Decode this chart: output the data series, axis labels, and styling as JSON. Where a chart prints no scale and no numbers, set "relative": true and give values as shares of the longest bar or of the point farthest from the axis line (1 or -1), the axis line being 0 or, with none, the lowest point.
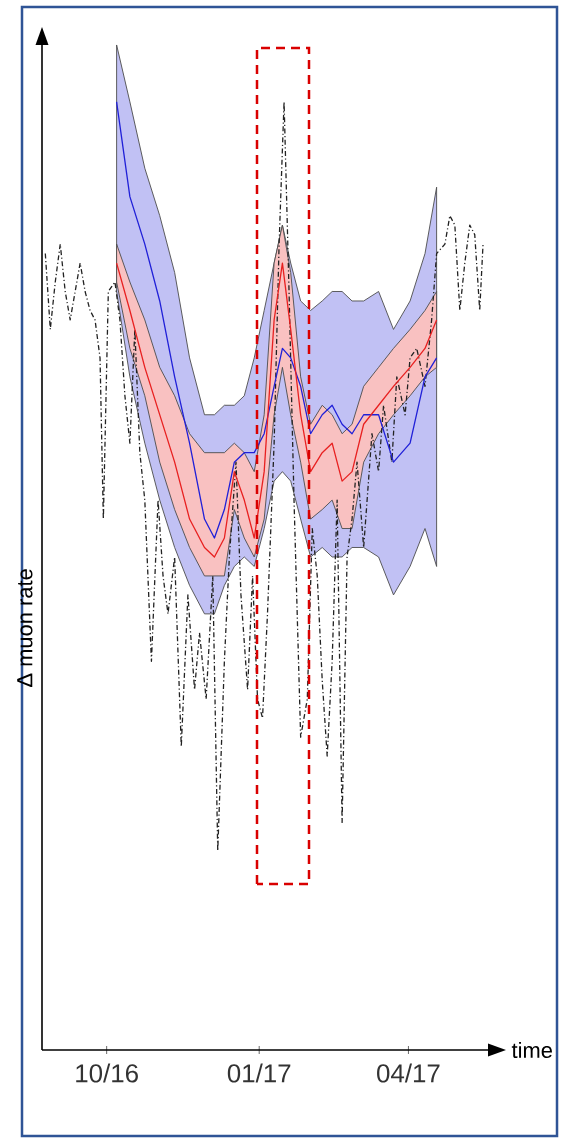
{
  "chart_data": {
    "type": "line",
    "relative": true,
    "tick_labels": "x",
    "xlabel": "time",
    "ylabel": "Δ muon rate",
    "xlim": [
      "2016-08-23",
      "2017-05-19"
    ],
    "xticks": [
      {
        "value": "2016-10-01",
        "label": "10/16"
      },
      {
        "value": "2017-01-01",
        "label": "01/17"
      },
      {
        "value": "2017-04-01",
        "label": "04/17"
      }
    ],
    "series": [
      {
        "color": "#222222",
        "line_style": "dashdot",
        "x": [
          "2016-08-25",
          "2016-08-28",
          "2016-08-31",
          "2016-09-03",
          "2016-09-06",
          "2016-09-09",
          "2016-09-12",
          "2016-09-15",
          "2016-09-18",
          "2016-09-21",
          "2016-09-24",
          "2016-09-27",
          "2016-09-29",
          "2016-10-02",
          "2016-10-06",
          "2016-10-09",
          "2016-10-12",
          "2016-10-15",
          "2016-10-18",
          "2016-10-21",
          "2016-10-24",
          "2016-10-28",
          "2016-11-01",
          "2016-11-04",
          "2016-11-07",
          "2016-11-11",
          "2016-11-15",
          "2016-11-19",
          "2016-11-23",
          "2016-11-26",
          "2016-11-30",
          "2016-12-04",
          "2016-12-07",
          "2016-12-11",
          "2016-12-14",
          "2016-12-18",
          "2016-12-21",
          "2016-12-25",
          "2016-12-28",
          "2016-12-31",
          "2017-01-03",
          "2017-01-06",
          "2017-01-10",
          "2017-01-13",
          "2017-01-16",
          "2017-01-19",
          "2017-01-22",
          "2017-01-26",
          "2017-01-30",
          "2017-02-02",
          "2017-02-05",
          "2017-02-08",
          "2017-02-11",
          "2017-02-14",
          "2017-02-17",
          "2017-02-20",
          "2017-02-23",
          "2017-02-26",
          "2017-03-01",
          "2017-03-05",
          "2017-03-10",
          "2017-03-14",
          "2017-03-17",
          "2017-03-22",
          "2017-03-25",
          "2017-03-30",
          "2017-04-02",
          "2017-04-06",
          "2017-04-11",
          "2017-04-15",
          "2017-04-18",
          "2017-04-23",
          "2017-04-26",
          "2017-04-29",
          "2017-05-02",
          "2017-05-05",
          "2017-05-08",
          "2017-05-11",
          "2017-05-14",
          "2017-05-16"
        ],
        "values": [
          0.84,
          0.76,
          0.81,
          0.85,
          0.8,
          0.77,
          0.8,
          0.83,
          0.8,
          0.78,
          0.77,
          0.73,
          0.56,
          0.8,
          0.81,
          0.77,
          0.69,
          0.64,
          0.76,
          0.63,
          0.58,
          0.41,
          0.58,
          0.5,
          0.46,
          0.52,
          0.32,
          0.48,
          0.38,
          0.44,
          0.37,
          0.5,
          0.21,
          0.41,
          0.52,
          0.62,
          0.48,
          0.38,
          0.5,
          0.37,
          0.35,
          0.46,
          0.64,
          0.85,
          1.0,
          0.8,
          0.58,
          0.33,
          0.37,
          0.55,
          0.5,
          0.39,
          0.31,
          0.41,
          0.58,
          0.24,
          0.52,
          0.56,
          0.62,
          0.53,
          0.65,
          0.61,
          0.68,
          0.62,
          0.71,
          0.67,
          0.73,
          0.74,
          0.7,
          0.77,
          0.84,
          0.85,
          0.88,
          0.87,
          0.78,
          0.83,
          0.87,
          0.86,
          0.78,
          0.85
        ]
      },
      {
        "color": "#2020d8",
        "x": [
          "2016-10-07",
          "2016-10-15",
          "2016-10-24",
          "2016-11-02",
          "2016-11-11",
          "2016-11-20",
          "2016-11-29",
          "2016-12-05",
          "2016-12-11",
          "2016-12-17",
          "2016-12-23",
          "2016-12-29",
          "2017-01-04",
          "2017-01-10",
          "2017-01-15",
          "2017-01-20",
          "2017-01-26",
          "2017-02-01",
          "2017-02-08",
          "2017-02-14",
          "2017-02-20",
          "2017-02-26",
          "2017-03-05",
          "2017-03-14",
          "2017-03-23",
          "2017-04-02",
          "2017-04-11",
          "2017-04-18"
        ],
        "values": [
          1.0,
          0.9,
          0.85,
          0.79,
          0.71,
          0.64,
          0.56,
          0.54,
          0.57,
          0.62,
          0.63,
          0.63,
          0.65,
          0.7,
          0.74,
          0.73,
          0.7,
          0.65,
          0.67,
          0.68,
          0.66,
          0.65,
          0.67,
          0.67,
          0.62,
          0.64,
          0.71,
          0.73
        ],
        "upper": [
          1.06,
          1.0,
          0.93,
          0.88,
          0.82,
          0.73,
          0.67,
          0.67,
          0.68,
          0.68,
          0.69,
          0.73,
          0.78,
          0.83,
          0.87,
          0.83,
          0.79,
          0.78,
          0.79,
          0.8,
          0.8,
          0.79,
          0.79,
          0.8,
          0.76,
          0.79,
          0.84,
          0.91
        ],
        "lower": [
          0.8,
          0.71,
          0.64,
          0.58,
          0.53,
          0.49,
          0.46,
          0.46,
          0.49,
          0.51,
          0.52,
          0.51,
          0.55,
          0.6,
          0.61,
          0.6,
          0.56,
          0.52,
          0.53,
          0.52,
          0.52,
          0.53,
          0.53,
          0.52,
          0.48,
          0.51,
          0.55,
          0.51
        ]
      },
      {
        "color": "#e82020",
        "x": [
          "2016-10-07",
          "2016-10-15",
          "2016-10-24",
          "2016-11-02",
          "2016-11-11",
          "2016-11-20",
          "2016-11-29",
          "2016-12-05",
          "2016-12-11",
          "2016-12-17",
          "2016-12-23",
          "2016-12-29",
          "2017-01-04",
          "2017-01-10",
          "2017-01-15",
          "2017-01-20",
          "2017-01-26",
          "2017-02-01",
          "2017-02-08",
          "2017-02-14",
          "2017-02-20",
          "2017-02-26",
          "2017-03-05",
          "2017-03-14",
          "2017-03-23",
          "2017-04-02",
          "2017-04-11",
          "2017-04-18"
        ],
        "values": [
          0.83,
          0.78,
          0.72,
          0.67,
          0.62,
          0.56,
          0.53,
          0.52,
          0.54,
          0.61,
          0.58,
          0.54,
          0.61,
          0.77,
          0.83,
          0.76,
          0.67,
          0.61,
          0.63,
          0.64,
          0.6,
          0.61,
          0.66,
          0.68,
          0.7,
          0.72,
          0.74,
          0.77
        ],
        "upper": [
          0.85,
          0.81,
          0.77,
          0.72,
          0.69,
          0.65,
          0.63,
          0.63,
          0.63,
          0.64,
          0.63,
          0.61,
          0.67,
          0.83,
          0.87,
          0.82,
          0.71,
          0.66,
          0.68,
          0.67,
          0.65,
          0.66,
          0.7,
          0.72,
          0.74,
          0.76,
          0.78,
          0.8
        ],
        "lower": [
          0.81,
          0.74,
          0.69,
          0.62,
          0.57,
          0.53,
          0.5,
          0.5,
          0.5,
          0.57,
          0.54,
          0.52,
          0.56,
          0.67,
          0.72,
          0.67,
          0.62,
          0.56,
          0.57,
          0.58,
          0.55,
          0.55,
          0.62,
          0.65,
          0.67,
          0.69,
          0.71,
          0.72
        ]
      }
    ]
  }
}
